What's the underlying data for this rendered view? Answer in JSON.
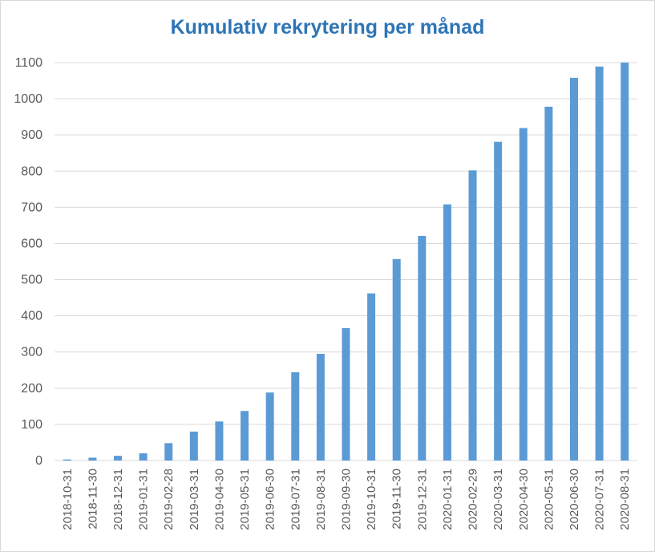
{
  "chart_data": {
    "type": "bar",
    "title": "Kumulativ rekrytering per månad",
    "xlabel": "",
    "ylabel": "",
    "ylim": [
      0,
      1100
    ],
    "yticks": [
      0,
      100,
      200,
      300,
      400,
      500,
      600,
      700,
      800,
      900,
      1000,
      1100
    ],
    "grid": true,
    "legend": "none",
    "bar_color": "#5b9bd5",
    "title_color": "#2e75b6",
    "categories": [
      "2018-10-31",
      "2018-11-30",
      "2018-12-31",
      "2019-01-31",
      "2019-02-28",
      "2019-03-31",
      "2019-04-30",
      "2019-05-31",
      "2019-06-30",
      "2019-07-31",
      "2019-08-31",
      "2019-09-30",
      "2019-10-31",
      "2019-11-30",
      "2019-12-31",
      "2020-01-31",
      "2020-02-29",
      "2020-03-31",
      "2020-04-30",
      "2020-05-31",
      "2020-06-30",
      "2020-07-31",
      "2020-08-31"
    ],
    "values": [
      3,
      8,
      13,
      20,
      48,
      80,
      108,
      137,
      188,
      244,
      295,
      366,
      462,
      557,
      621,
      708,
      802,
      881,
      919,
      978,
      1058,
      1089,
      1100
    ]
  }
}
